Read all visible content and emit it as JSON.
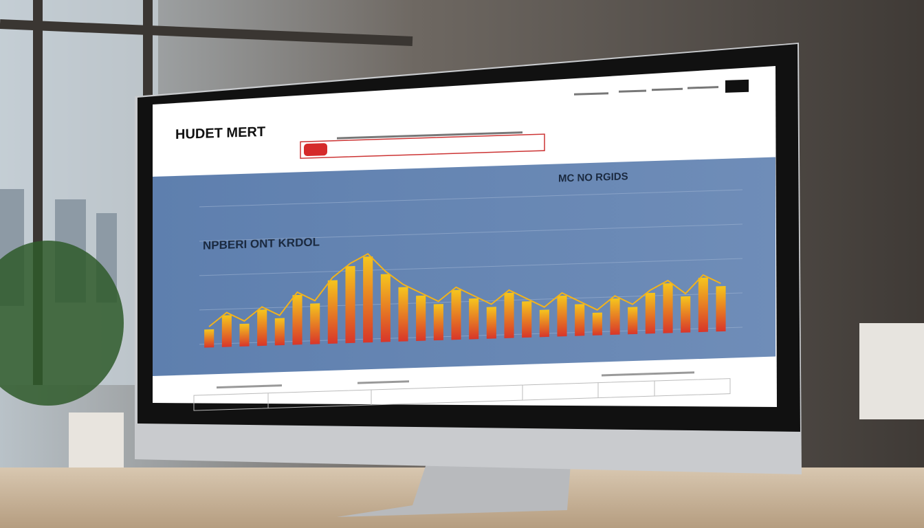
{
  "header": {
    "title": "HUDET MERT"
  },
  "panel": {
    "title": "MC NO RGIDS",
    "subtitle": "NPBERI ONT KRDOL"
  },
  "chart": {
    "values": [
      20,
      35,
      25,
      40,
      30,
      55,
      45,
      70,
      85,
      95,
      75,
      60,
      50,
      40,
      55,
      45,
      35,
      50,
      40,
      30,
      45,
      35,
      25,
      40,
      30,
      45,
      55,
      40,
      60,
      50
    ]
  }
}
